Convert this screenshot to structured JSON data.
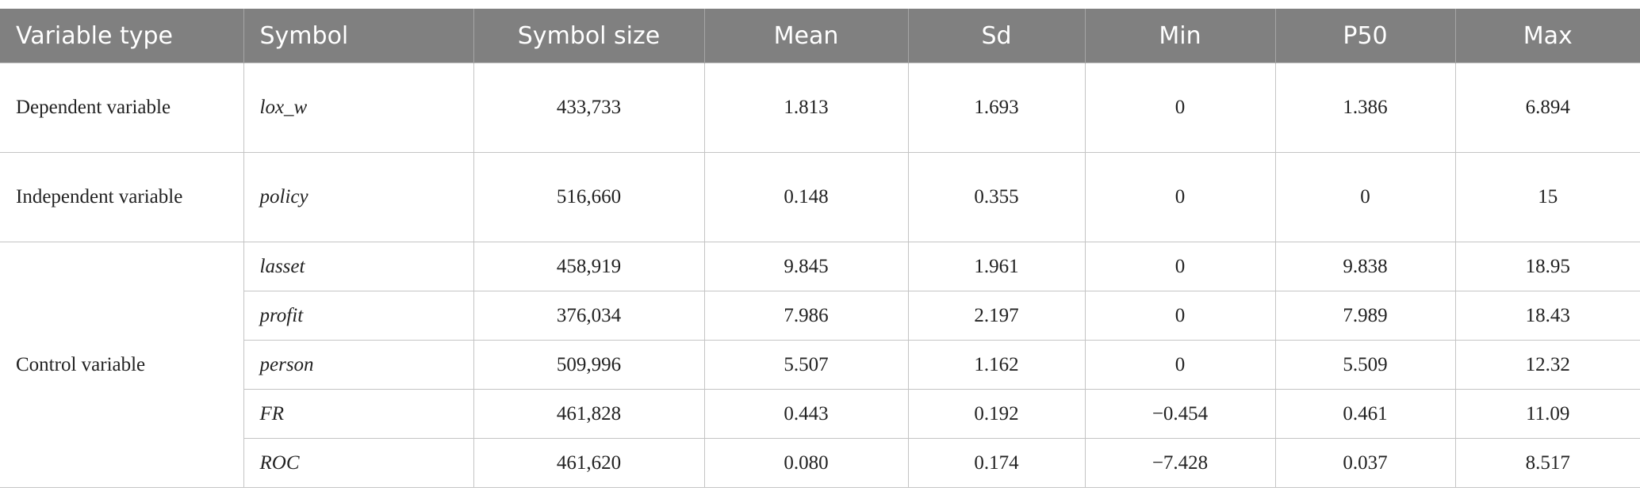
{
  "table": {
    "header": [
      "Variable type",
      "Symbol",
      "Symbol size",
      "Mean",
      "Sd",
      "Min",
      "P50",
      "Max"
    ],
    "groups": [
      {
        "type": "Dependent variable",
        "rows": [
          [
            "lox_w",
            "433,733",
            "1.813",
            "1.693",
            "0",
            "1.386",
            "6.894"
          ]
        ]
      },
      {
        "type": "Independent variable",
        "rows": [
          [
            "policy",
            "516,660",
            "0.148",
            "0.355",
            "0",
            "0",
            "15"
          ]
        ]
      },
      {
        "type": "Control variable",
        "rows": [
          [
            "lasset",
            "458,919",
            "9.845",
            "1.961",
            "0",
            "9.838",
            "18.95"
          ],
          [
            "profit",
            "376,034",
            "7.986",
            "2.197",
            "0",
            "7.989",
            "18.43"
          ],
          [
            "person",
            "509,996",
            "5.507",
            "1.162",
            "0",
            "5.509",
            "12.32"
          ],
          [
            "FR",
            "461,828",
            "0.443",
            "0.192",
            "−0.454",
            "0.461",
            "11.09"
          ],
          [
            "ROC",
            "461,620",
            "0.080",
            "0.174",
            "−7.428",
            "0.037",
            "8.517"
          ]
        ]
      }
    ]
  }
}
